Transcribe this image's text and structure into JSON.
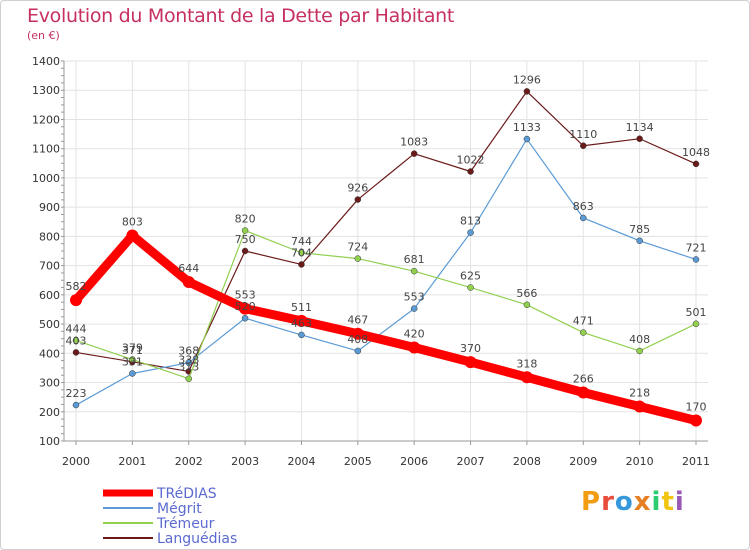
{
  "chart_data": {
    "type": "line",
    "title": "Evolution du Montant de la Dette par Habitant",
    "subtitle": "(en €)",
    "x": [
      "2000",
      "2001",
      "2002",
      "2003",
      "2004",
      "2005",
      "2006",
      "2007",
      "2008",
      "2009",
      "2010",
      "2011"
    ],
    "ylim": [
      100,
      1400
    ],
    "yticks": [
      100,
      200,
      300,
      400,
      500,
      600,
      700,
      800,
      900,
      1000,
      1100,
      1200,
      1300,
      1400
    ],
    "grid": true,
    "legend_position": "bottom-left",
    "series": [
      {
        "name": "TRéDIAS",
        "color": "#ff0000",
        "values": [
          582,
          803,
          644,
          553,
          511,
          467,
          420,
          370,
          318,
          266,
          218,
          170
        ]
      },
      {
        "name": "Mégrit",
        "color": "#5b9bd5",
        "values": [
          223,
          331,
          368,
          520,
          463,
          408,
          553,
          813,
          1133,
          863,
          785,
          721
        ]
      },
      {
        "name": "Trémeur",
        "color": "#92d050",
        "values": [
          444,
          379,
          313,
          820,
          744,
          724,
          681,
          625,
          566,
          471,
          408,
          501
        ]
      },
      {
        "name": "Languédias",
        "color": "#6b1a1a",
        "values": [
          403,
          371,
          338,
          750,
          704,
          926,
          1083,
          1022,
          1296,
          1110,
          1134,
          1048
        ]
      }
    ]
  },
  "logo": {
    "text": "Proxiti"
  }
}
